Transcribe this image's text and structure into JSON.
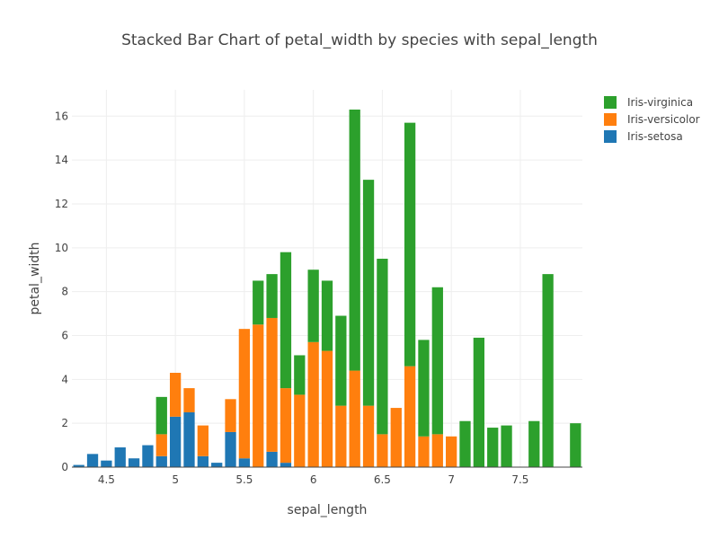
{
  "chart_data": {
    "type": "bar",
    "barmode": "stack",
    "title": "Stacked Bar Chart of petal_width by species with sepal_length",
    "xlabel": "sepal_length",
    "ylabel": "petal_width",
    "xlim": [
      4.25,
      7.95
    ],
    "ylim": [
      0,
      17.2
    ],
    "x_ticks": [
      4.5,
      5,
      5.5,
      6,
      6.5,
      7,
      7.5
    ],
    "x_tick_labels": [
      "4.5",
      "5",
      "5.5",
      "6",
      "6.5",
      "7",
      "7.5"
    ],
    "y_ticks": [
      0,
      2,
      4,
      6,
      8,
      10,
      12,
      14,
      16
    ],
    "y_tick_labels": [
      "0",
      "2",
      "4",
      "6",
      "8",
      "10",
      "12",
      "14",
      "16"
    ],
    "grid": true,
    "legend_position": "top-right",
    "series": [
      {
        "name": "Iris-setosa",
        "color": "#1f77b4",
        "points": [
          {
            "x": 4.3,
            "y": 0.1
          },
          {
            "x": 4.4,
            "y": 0.6
          },
          {
            "x": 4.5,
            "y": 0.3
          },
          {
            "x": 4.6,
            "y": 0.9
          },
          {
            "x": 4.7,
            "y": 0.4
          },
          {
            "x": 4.8,
            "y": 1.0
          },
          {
            "x": 4.9,
            "y": 0.5
          },
          {
            "x": 5.0,
            "y": 2.3
          },
          {
            "x": 5.1,
            "y": 2.5
          },
          {
            "x": 5.2,
            "y": 0.5
          },
          {
            "x": 5.3,
            "y": 0.2
          },
          {
            "x": 5.4,
            "y": 1.6
          },
          {
            "x": 5.5,
            "y": 0.4
          },
          {
            "x": 5.7,
            "y": 0.7
          },
          {
            "x": 5.8,
            "y": 0.2
          }
        ]
      },
      {
        "name": "Iris-versicolor",
        "color": "#ff7f0e",
        "points": [
          {
            "x": 4.9,
            "y": 1.0
          },
          {
            "x": 5.0,
            "y": 2.0
          },
          {
            "x": 5.1,
            "y": 1.1
          },
          {
            "x": 5.2,
            "y": 1.4
          },
          {
            "x": 5.4,
            "y": 1.5
          },
          {
            "x": 5.5,
            "y": 5.9
          },
          {
            "x": 5.6,
            "y": 6.5
          },
          {
            "x": 5.7,
            "y": 6.1
          },
          {
            "x": 5.8,
            "y": 3.4
          },
          {
            "x": 5.9,
            "y": 3.3
          },
          {
            "x": 6.0,
            "y": 5.7
          },
          {
            "x": 6.1,
            "y": 5.3
          },
          {
            "x": 6.2,
            "y": 2.8
          },
          {
            "x": 6.3,
            "y": 4.4
          },
          {
            "x": 6.4,
            "y": 2.8
          },
          {
            "x": 6.5,
            "y": 1.5
          },
          {
            "x": 6.6,
            "y": 2.7
          },
          {
            "x": 6.7,
            "y": 4.6
          },
          {
            "x": 6.8,
            "y": 1.4
          },
          {
            "x": 6.9,
            "y": 1.5
          },
          {
            "x": 7.0,
            "y": 1.4
          }
        ]
      },
      {
        "name": "Iris-virginica",
        "color": "#2ca02c",
        "points": [
          {
            "x": 4.9,
            "y": 1.7
          },
          {
            "x": 5.6,
            "y": 2.0
          },
          {
            "x": 5.7,
            "y": 2.0
          },
          {
            "x": 5.8,
            "y": 6.2
          },
          {
            "x": 5.9,
            "y": 1.8
          },
          {
            "x": 6.0,
            "y": 3.3
          },
          {
            "x": 6.1,
            "y": 3.2
          },
          {
            "x": 6.2,
            "y": 4.1
          },
          {
            "x": 6.3,
            "y": 11.9
          },
          {
            "x": 6.4,
            "y": 10.3
          },
          {
            "x": 6.5,
            "y": 8.0
          },
          {
            "x": 6.7,
            "y": 11.1
          },
          {
            "x": 6.8,
            "y": 4.4
          },
          {
            "x": 6.9,
            "y": 6.7
          },
          {
            "x": 7.1,
            "y": 2.1
          },
          {
            "x": 7.2,
            "y": 5.9
          },
          {
            "x": 7.3,
            "y": 1.8
          },
          {
            "x": 7.4,
            "y": 1.9
          },
          {
            "x": 7.6,
            "y": 2.1
          },
          {
            "x": 7.7,
            "y": 8.8
          },
          {
            "x": 7.9,
            "y": 2.0
          }
        ]
      }
    ],
    "legend_order": [
      "Iris-virginica",
      "Iris-versicolor",
      "Iris-setosa"
    ]
  }
}
